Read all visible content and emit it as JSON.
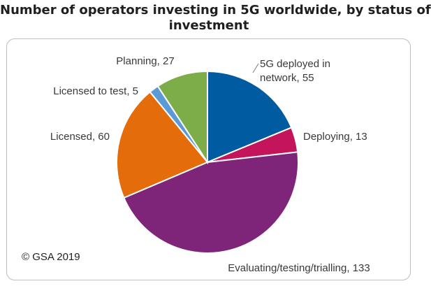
{
  "title_lines": [
    "Number of operators investing in 5G worldwide, by status of",
    "investment"
  ],
  "credit": "© GSA 2019",
  "chart_data": {
    "type": "pie",
    "title": "Number of operators investing in 5G worldwide, by status of investment",
    "slices": [
      {
        "label_lines": [
          "5G deployed in",
          "network, 55"
        ],
        "category": "5G deployed in network",
        "value": 55,
        "color": "#005ba1"
      },
      {
        "label_lines": [
          "Deploying, 13"
        ],
        "category": "Deploying",
        "value": 13,
        "color": "#c4145c"
      },
      {
        "label_lines": [
          "Evaluating/testing/trialling, 133"
        ],
        "category": "Evaluating/testing/trialling",
        "value": 133,
        "color": "#7e2479"
      },
      {
        "label_lines": [
          "Licensed, 60"
        ],
        "category": "Licensed",
        "value": 60,
        "color": "#e46c0a"
      },
      {
        "label_lines": [
          "Licensed to test, 5"
        ],
        "category": "Licensed to test",
        "value": 5,
        "color": "#5b9bd5"
      },
      {
        "label_lines": [
          "Planning, 27"
        ],
        "category": "Planning",
        "value": 27,
        "color": "#7cad48"
      }
    ]
  }
}
